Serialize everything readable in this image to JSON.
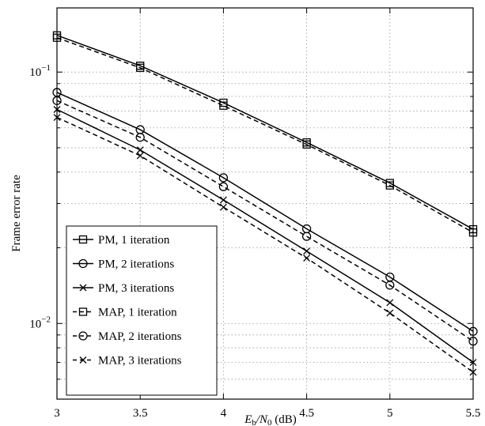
{
  "chart_data": {
    "type": "line",
    "title": "",
    "xlabel": "E_b/N_0 (dB)",
    "xlabel_parts": {
      "symbol": "E",
      "sub1": "b",
      "slash": "/N",
      "sub2": "0",
      "unit": " (dB)"
    },
    "ylabel": "Frame error rate",
    "x_scale": "linear",
    "y_scale": "log",
    "xlim": [
      3,
      5.5
    ],
    "ylim": [
      0.005,
      0.18
    ],
    "xticks": [
      3,
      3.5,
      4,
      4.5,
      5,
      5.5
    ],
    "xtick_labels": [
      "3",
      "3.5",
      "4",
      "4.5",
      "5",
      "5.5"
    ],
    "y_major_ticks": [
      {
        "value": 0.1,
        "base": "10",
        "exp": "−1"
      },
      {
        "value": 0.01,
        "base": "10",
        "exp": "−2"
      }
    ],
    "y_minor_ticks": [
      0.006,
      0.007,
      0.008,
      0.009,
      0.02,
      0.03,
      0.04,
      0.05,
      0.06,
      0.07,
      0.08,
      0.09
    ],
    "grid": true,
    "legend_position": "bottom-left",
    "x": [
      3,
      3.5,
      4,
      4.5,
      5,
      5.5
    ],
    "series": [
      {
        "name": "PM, 1 iteration",
        "marker": "square",
        "dash": "solid",
        "values": [
          0.14,
          0.106,
          0.0755,
          0.0525,
          0.0362,
          0.0237
        ]
      },
      {
        "name": "PM, 2 iterations",
        "marker": "circle",
        "dash": "solid",
        "values": [
          0.083,
          0.059,
          0.038,
          0.0238,
          0.0153,
          0.0093
        ]
      },
      {
        "name": "PM, 3 iterations",
        "marker": "x",
        "dash": "solid",
        "values": [
          0.071,
          0.049,
          0.031,
          0.0194,
          0.0121,
          0.007
        ]
      },
      {
        "name": "MAP, 1 iteration",
        "marker": "square",
        "dash": "dashed",
        "values": [
          0.137,
          0.104,
          0.0735,
          0.0515,
          0.0354,
          0.023
        ]
      },
      {
        "name": "MAP, 2 iterations",
        "marker": "circle",
        "dash": "dashed",
        "values": [
          0.077,
          0.055,
          0.035,
          0.0222,
          0.0142,
          0.0085
        ]
      },
      {
        "name": "MAP, 3 iterations",
        "marker": "x",
        "dash": "dashed",
        "values": [
          0.066,
          0.0465,
          0.029,
          0.0182,
          0.011,
          0.0064
        ]
      }
    ],
    "colors": {
      "line": "#000000",
      "grid": "#999999",
      "background": "#ffffff"
    }
  }
}
